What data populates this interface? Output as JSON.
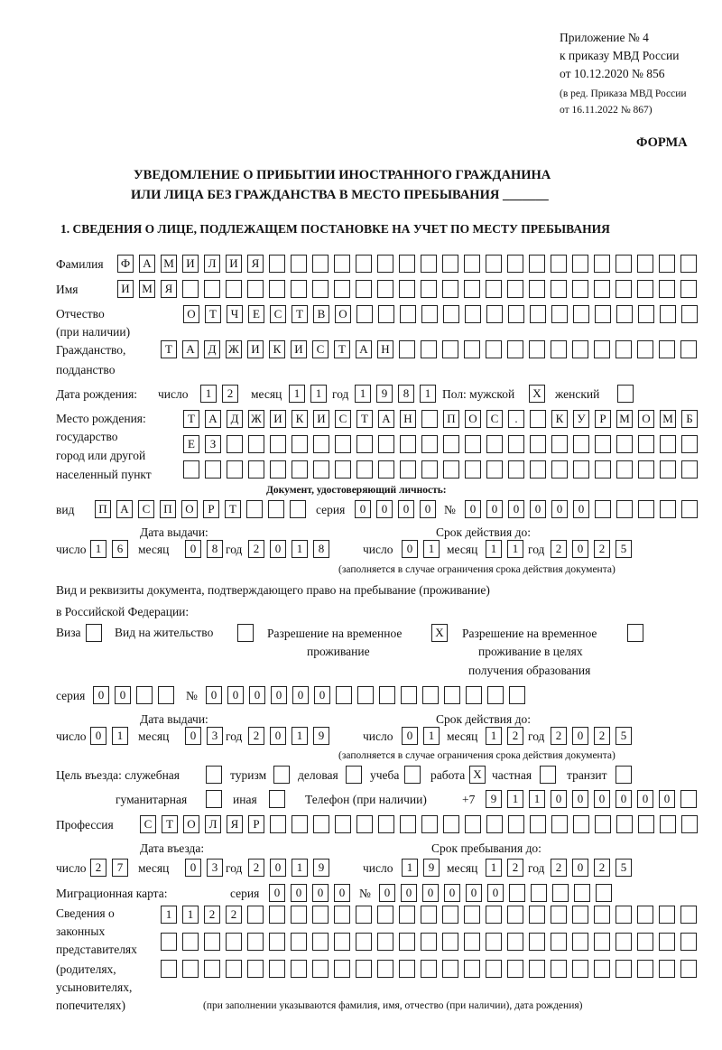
{
  "header": {
    "appendix": "Приложение № 4",
    "order": "к приказу МВД России",
    "order_date": "от 10.12.2020 № 856",
    "revision": "(в ред. Приказа МВД России",
    "revision_date": "от 16.11.2022 № 867)",
    "form_label": "ФОРМА",
    "title_line1": "УВЕДОМЛЕНИЕ О ПРИБЫТИИ ИНОСТРАННОГО ГРАЖДАНИНА",
    "title_line2": "ИЛИ ЛИЦА БЕЗ ГРАЖДАНСТВА В МЕСТО ПРЕБЫВАНИЯ _______",
    "section1": "1. СВЕДЕНИЯ О ЛИЦЕ, ПОДЛЕЖАЩЕМ ПОСТАНОВКЕ НА УЧЕТ ПО МЕСТУ ПРЕБЫВАНИЯ"
  },
  "labels": {
    "surname": "Фамилия",
    "name": "Имя",
    "patronymic": "Отчество",
    "patronymic_note": "(при наличии)",
    "citizenship": "Гражданство,",
    "citizenship2": "подданство",
    "birth_date": "Дата рождения:",
    "day": "число",
    "month": "месяц",
    "year": "год",
    "sex_male": "Пол: мужской",
    "sex_female": "женский",
    "birth_place": "Место рождения:",
    "birth_place2": "государство",
    "birth_place3": "город или другой",
    "birth_place4": "населенный пункт",
    "id_doc": "Документ, удостоверяющий личность:",
    "kind": "вид",
    "series": "серия",
    "number": "№",
    "issue_date": "Дата выдачи:",
    "valid_until": "Срок действия до:",
    "validity_note": "(заполняется в случае ограничения срока действия документа)",
    "stay_doc1": "Вид и реквизиты документа, подтверждающего право на пребывание (проживание)",
    "stay_doc2": "в Российской Федерации:",
    "visa": "Виза",
    "residence": "Вид на жительство",
    "trp1": "Разрешение на временное",
    "trp2": "проживание",
    "trp_edu1": "Разрешение на временное",
    "trp_edu2": "проживание в целях",
    "trp_edu3": "получения образования",
    "purpose": "Цель въезда: служебная",
    "tourism": "туризм",
    "business": "деловая",
    "study": "учеба",
    "work": "работа",
    "private": "частная",
    "transit": "транзит",
    "humanitarian": "гуманитарная",
    "other": "иная",
    "phone": "Телефон (при наличии)",
    "phone_prefix": "+7",
    "profession": "Профессия",
    "entry_date": "Дата въезда:",
    "stay_until": "Срок пребывания до:",
    "migration_card": "Миграционная карта:",
    "reps1": "Сведения о",
    "reps2": "законных",
    "reps3": "представителях",
    "reps4": "(родителях,",
    "reps5": "усыновителях,",
    "reps6": "попечителях)",
    "reps_note": "(при заполнении указываются фамилия, имя, отчество (при наличии), дата рождения)"
  },
  "fields": {
    "surname": "ФАМИЛИЯ",
    "name": "ИМЯ",
    "patronymic": "ОТЧЕСТВО",
    "citizenship": "ТАДЖИКИСТАН",
    "birth_day": "12",
    "birth_month": "11",
    "birth_year": "1981",
    "sex_male": "X",
    "sex_female": "",
    "birth_place1": "ТАДЖИКИСТАН ПОС. КУРМОМБ",
    "birth_place2": "ЕЗ",
    "birth_place3": "",
    "id_kind": "ПАСПОРТ",
    "id_series": "0000",
    "id_number": "000000",
    "id_issue_day": "16",
    "id_issue_month": "08",
    "id_issue_year": "2018",
    "id_valid_day": "01",
    "id_valid_month": "11",
    "id_valid_year": "2025",
    "visa": "",
    "residence": "",
    "trp": "X",
    "trp_edu": "",
    "stay_series": "00",
    "stay_number": "000000",
    "stay_issue_day": "01",
    "stay_issue_month": "03",
    "stay_issue_year": "2019",
    "stay_valid_day": "01",
    "stay_valid_month": "12",
    "stay_valid_year": "2025",
    "purpose_official": "",
    "purpose_tourism": "",
    "purpose_business": "",
    "purpose_study": "",
    "purpose_work": "X",
    "purpose_private": "",
    "purpose_transit": "",
    "purpose_humanitarian": "",
    "purpose_other": "",
    "phone": "911000000",
    "profession": "СТОЛЯР",
    "entry_day": "27",
    "entry_month": "03",
    "entry_year": "2019",
    "stay_until_day": "19",
    "stay_until_month": "12",
    "stay_until_year": "2025",
    "mc_series": "0000",
    "mc_number": "000000",
    "reps1": "1122",
    "reps2": "",
    "reps3": ""
  }
}
